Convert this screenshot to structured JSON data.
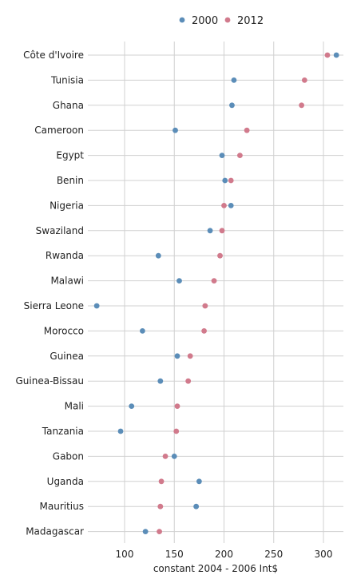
{
  "chart_data": {
    "type": "scatter",
    "subtype": "dot-plot",
    "title": "",
    "xlabel": "constant 2004 - 2006 Int$",
    "ylabel": "",
    "xlim": [
      60,
      323
    ],
    "xticks": [
      100,
      150,
      200,
      250,
      300
    ],
    "grid": true,
    "legend_position": "top",
    "categories": [
      "Côte d'Ivoire",
      "Tunisia",
      "Ghana",
      "Cameroon",
      "Egypt",
      "Benin",
      "Nigeria",
      "Swaziland",
      "Rwanda",
      "Malawi",
      "Sierra Leone",
      "Morocco",
      "Guinea",
      "Guinea-Bissau",
      "Mali",
      "Tanzania",
      "Gabon",
      "Uganda",
      "Mauritius",
      "Madagascar"
    ],
    "series": [
      {
        "name": "2000",
        "color": "#5b8db8",
        "values": [
          313,
          210,
          208,
          151,
          198,
          201,
          207,
          186,
          134,
          155,
          72,
          118,
          153,
          136,
          107,
          96,
          150,
          175,
          172,
          121
        ]
      },
      {
        "name": "2012",
        "color": "#d17a8c",
        "values": [
          304,
          281,
          278,
          223,
          216,
          207,
          200,
          198,
          196,
          190,
          181,
          180,
          166,
          164,
          153,
          152,
          141,
          137,
          136,
          135
        ]
      }
    ]
  }
}
